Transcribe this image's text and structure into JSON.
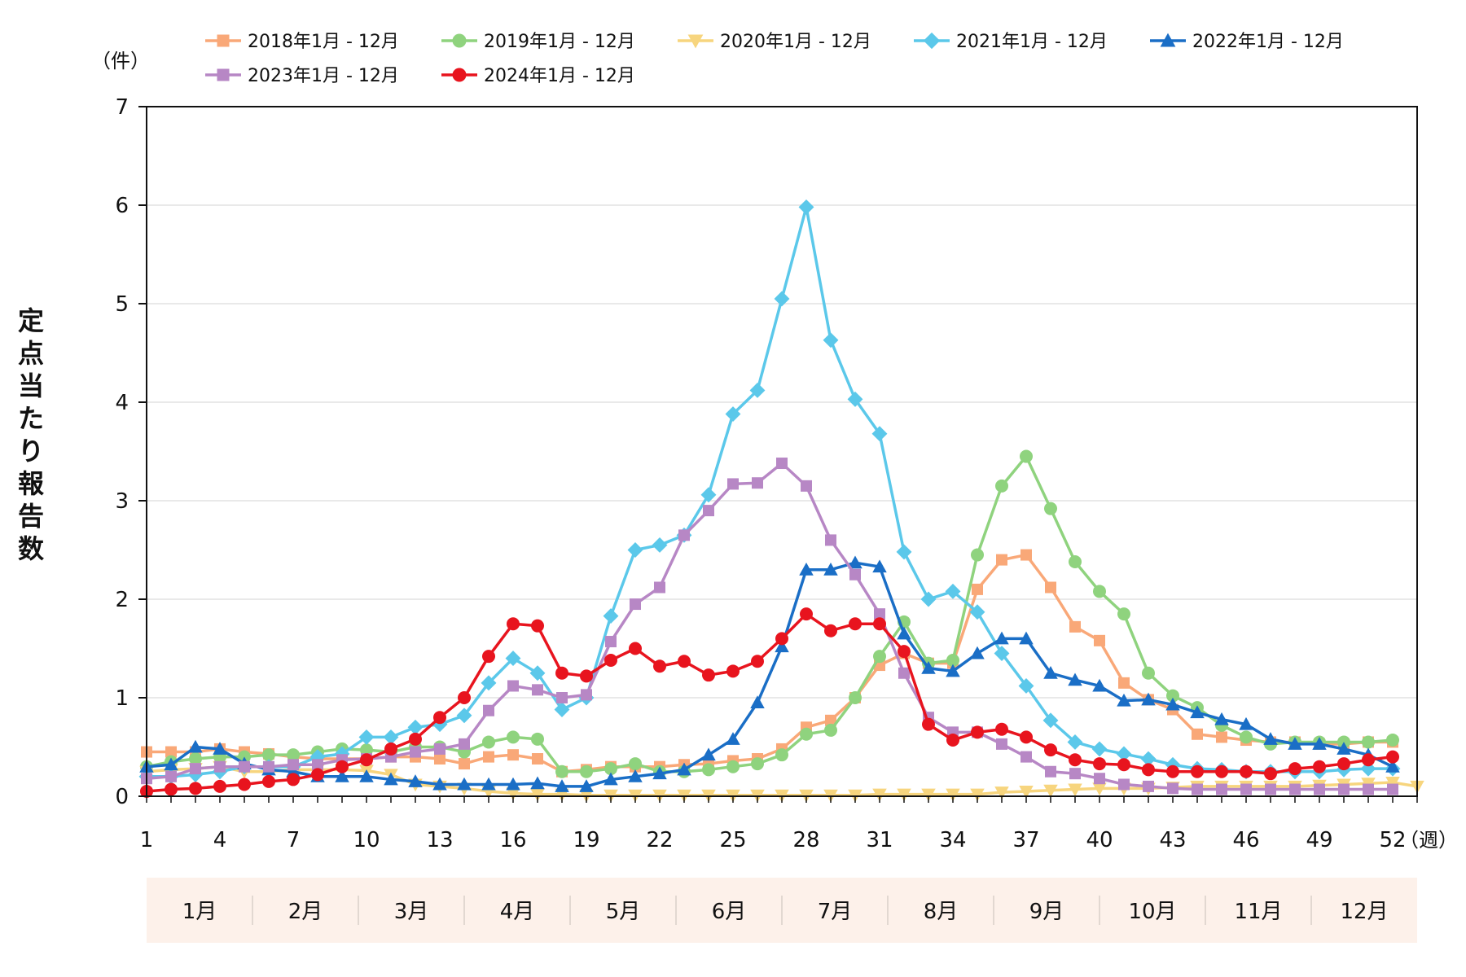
{
  "chart_data": {
    "type": "line",
    "y_unit": "（件）",
    "x_unit": "（週）",
    "ylabel": "定点当たり報告数",
    "ylim": [
      0,
      7
    ],
    "yticks": [
      0,
      1,
      2,
      3,
      4,
      5,
      6,
      7
    ],
    "xlim": [
      1,
      53
    ],
    "xticks": [
      1,
      4,
      7,
      10,
      13,
      16,
      19,
      22,
      25,
      28,
      31,
      34,
      37,
      40,
      43,
      46,
      49,
      52
    ],
    "months": [
      "1月",
      "2月",
      "3月",
      "4月",
      "5月",
      "6月",
      "7月",
      "8月",
      "9月",
      "10月",
      "11月",
      "12月"
    ],
    "series": [
      {
        "name": "2018年1月 - 12月",
        "color": "#F9A878",
        "marker": "square",
        "values": [
          0.45,
          0.45,
          0.45,
          0.48,
          0.45,
          0.43,
          0.4,
          0.38,
          0.38,
          0.38,
          0.4,
          0.4,
          0.38,
          0.33,
          0.4,
          0.42,
          0.38,
          0.25,
          0.27,
          0.3,
          0.3,
          0.3,
          0.32,
          0.33,
          0.36,
          0.38,
          0.48,
          0.7,
          0.77,
          1.0,
          1.33,
          1.45,
          1.35,
          1.35,
          2.1,
          2.4,
          2.45,
          2.12,
          1.72,
          1.58,
          1.15,
          0.98,
          0.88,
          0.63,
          0.6,
          0.57,
          0.55,
          0.55,
          0.53,
          0.53,
          0.55,
          0.55
        ]
      },
      {
        "name": "2019年1月 - 12月",
        "color": "#8FD37E",
        "marker": "circle",
        "values": [
          0.3,
          0.35,
          0.38,
          0.4,
          0.4,
          0.42,
          0.42,
          0.45,
          0.48,
          0.47,
          0.45,
          0.5,
          0.5,
          0.45,
          0.55,
          0.6,
          0.58,
          0.25,
          0.25,
          0.28,
          0.33,
          0.25,
          0.25,
          0.27,
          0.3,
          0.33,
          0.42,
          0.63,
          0.67,
          1.0,
          1.42,
          1.77,
          1.35,
          1.38,
          2.45,
          3.15,
          3.45,
          2.92,
          2.38,
          2.08,
          1.85,
          1.25,
          1.02,
          0.9,
          0.72,
          0.6,
          0.53,
          0.55,
          0.55,
          0.55,
          0.55,
          0.57
        ]
      },
      {
        "name": "2020年1月 - 12月",
        "color": "#F7D57E",
        "marker": "triangle-down",
        "values": [
          0.25,
          0.27,
          0.28,
          0.3,
          0.25,
          0.25,
          0.27,
          0.27,
          0.27,
          0.26,
          0.22,
          0.12,
          0.1,
          0.08,
          0.05,
          0.03,
          0.02,
          0.02,
          0.01,
          0.01,
          0.01,
          0.01,
          0.01,
          0.01,
          0.01,
          0.01,
          0.01,
          0.01,
          0.01,
          0.01,
          0.02,
          0.02,
          0.02,
          0.02,
          0.02,
          0.04,
          0.05,
          0.06,
          0.07,
          0.08,
          0.08,
          0.08,
          0.09,
          0.1,
          0.1,
          0.1,
          0.1,
          0.1,
          0.11,
          0.12,
          0.13,
          0.14,
          0.1
        ]
      },
      {
        "name": "2021年1月 - 12月",
        "color": "#5BC8EA",
        "marker": "diamond",
        "values": [
          0.2,
          0.2,
          0.22,
          0.25,
          0.3,
          0.3,
          0.3,
          0.4,
          0.43,
          0.6,
          0.6,
          0.7,
          0.73,
          0.82,
          1.15,
          1.4,
          1.25,
          0.88,
          1.0,
          1.83,
          2.5,
          2.55,
          2.65,
          3.06,
          3.88,
          4.12,
          5.05,
          5.98,
          4.63,
          4.03,
          3.68,
          2.48,
          2.0,
          2.08,
          1.87,
          1.45,
          1.12,
          0.77,
          0.55,
          0.48,
          0.43,
          0.38,
          0.32,
          0.28,
          0.27,
          0.25,
          0.25,
          0.25,
          0.25,
          0.27,
          0.28,
          0.28
        ]
      },
      {
        "name": "2022年1月 - 12月",
        "color": "#1A6EC6",
        "marker": "triangle",
        "values": [
          0.3,
          0.32,
          0.5,
          0.48,
          0.33,
          0.27,
          0.25,
          0.2,
          0.2,
          0.2,
          0.17,
          0.15,
          0.12,
          0.12,
          0.12,
          0.12,
          0.13,
          0.1,
          0.1,
          0.17,
          0.2,
          0.23,
          0.27,
          0.42,
          0.58,
          0.95,
          1.52,
          2.3,
          2.3,
          2.37,
          2.33,
          1.65,
          1.3,
          1.27,
          1.45,
          1.6,
          1.6,
          1.25,
          1.18,
          1.12,
          0.97,
          0.98,
          0.93,
          0.85,
          0.78,
          0.73,
          0.58,
          0.53,
          0.53,
          0.48,
          0.42,
          0.3
        ]
      },
      {
        "name": "2023年1月 - 12月",
        "color": "#B787C5",
        "marker": "square",
        "values": [
          0.18,
          0.2,
          0.28,
          0.3,
          0.3,
          0.3,
          0.32,
          0.32,
          0.37,
          0.38,
          0.4,
          0.45,
          0.48,
          0.53,
          0.87,
          1.12,
          1.08,
          1.0,
          1.03,
          1.57,
          1.95,
          2.12,
          2.65,
          2.9,
          3.17,
          3.18,
          3.38,
          3.15,
          2.6,
          2.25,
          1.85,
          1.25,
          0.8,
          0.65,
          0.65,
          0.53,
          0.4,
          0.25,
          0.23,
          0.18,
          0.12,
          0.1,
          0.08,
          0.07,
          0.07,
          0.07,
          0.07,
          0.07,
          0.07,
          0.07,
          0.07,
          0.07
        ]
      },
      {
        "name": "2024年1月 - 12月",
        "color": "#E8141E",
        "marker": "circle",
        "values": [
          0.05,
          0.07,
          0.08,
          0.1,
          0.12,
          0.15,
          0.17,
          0.22,
          0.3,
          0.37,
          0.48,
          0.58,
          0.8,
          1.0,
          1.42,
          1.75,
          1.73,
          1.25,
          1.22,
          1.38,
          1.5,
          1.32,
          1.37,
          1.23,
          1.27,
          1.37,
          1.6,
          1.85,
          1.68,
          1.75,
          1.75,
          1.47,
          0.73,
          0.57,
          0.65,
          0.68,
          0.6,
          0.47,
          0.37,
          0.33,
          0.32,
          0.27,
          0.25,
          0.25,
          0.25,
          0.25,
          0.23,
          0.28,
          0.3,
          0.33,
          0.37,
          0.4
        ]
      }
    ]
  }
}
